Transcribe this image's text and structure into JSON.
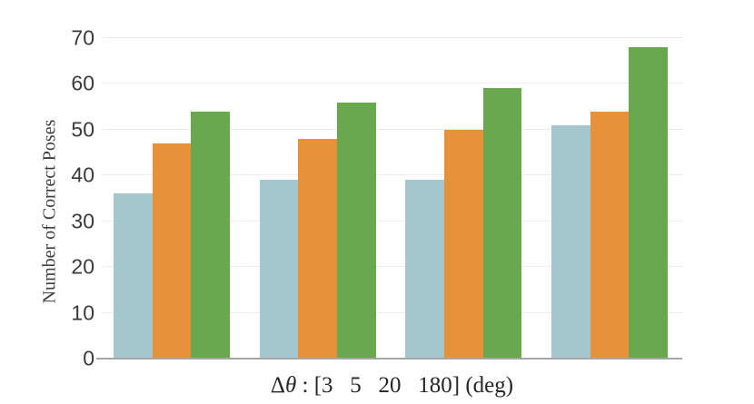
{
  "chart_data": {
    "type": "bar",
    "title": "",
    "ylabel": "Number of Correct Poses",
    "xlabel": {
      "delta": "Δ",
      "theta": "θ",
      "rest": " : [3   5   20   180] (deg)"
    },
    "categories": [
      "3",
      "5",
      "20",
      "180"
    ],
    "x_unit": "deg",
    "series": [
      {
        "name": "light-blue",
        "color": "#a4c7cd",
        "values": [
          36,
          39,
          39,
          51
        ]
      },
      {
        "name": "orange",
        "color": "#e7923b",
        "values": [
          47,
          48,
          50,
          54
        ]
      },
      {
        "name": "green",
        "color": "#6aa850",
        "values": [
          54,
          56,
          59,
          68
        ]
      }
    ],
    "ylim": [
      0,
      70
    ],
    "yticks": [
      0,
      10,
      20,
      30,
      40,
      50,
      60,
      70
    ],
    "grid": "horizontal",
    "legend": "none",
    "colors": {
      "gridline": "#ededed",
      "axis_line": "#a6a6a6",
      "tick_text": "#3a3a3a",
      "label_text": "#3d3d3d",
      "background": "#ffffff"
    }
  }
}
